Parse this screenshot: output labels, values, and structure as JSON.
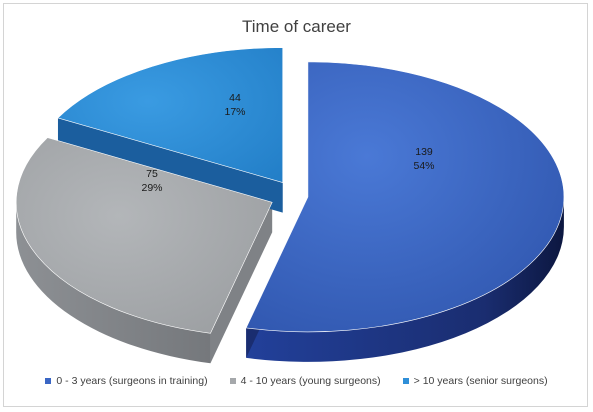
{
  "chart_data": {
    "type": "pie",
    "title": "Time of career",
    "categories": [
      "0 - 3 years (surgeons in training)",
      "4 - 10 years (young surgeons)",
      "> 10 years (senior surgeons)"
    ],
    "values": [
      139,
      75,
      44
    ],
    "percent_labels": [
      "54%",
      "29%",
      "17%"
    ],
    "colors": [
      "#3a66c4",
      "#a5a8ab",
      "#2f8fd8"
    ],
    "style": "3d-exploded",
    "legend_position": "bottom"
  }
}
